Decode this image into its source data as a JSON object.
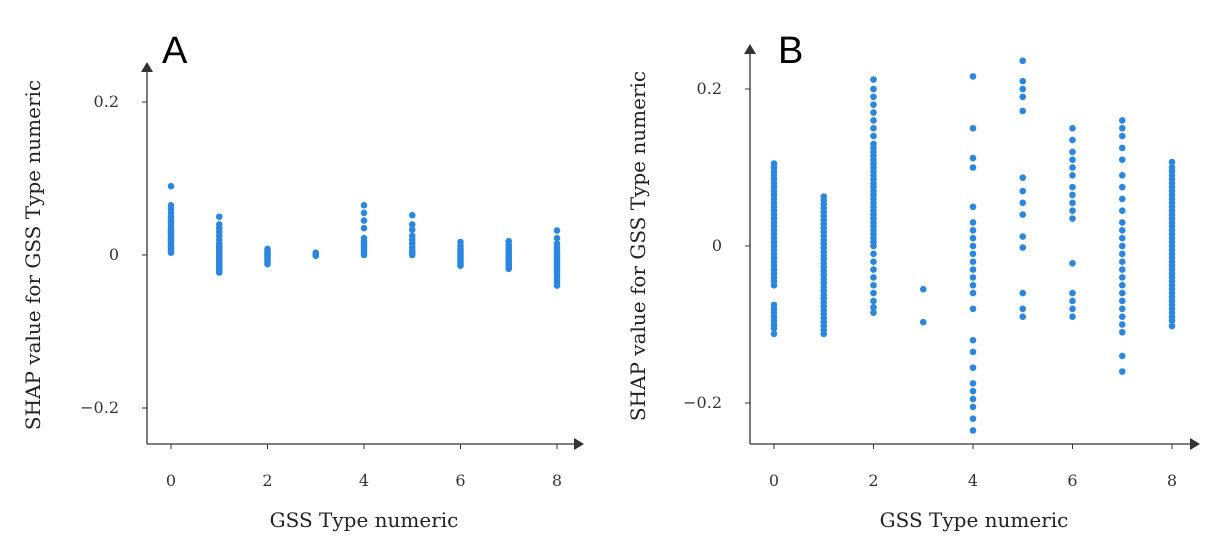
{
  "chart_data": [
    {
      "type": "scatter",
      "panel_label": "A",
      "xlabel": "GSS Type numeric",
      "ylabel": "SHAP value for GSS Type numeric",
      "xlim": [
        -0.5,
        8.4
      ],
      "ylim": [
        -0.25,
        0.23
      ],
      "xticks": [
        0,
        2,
        4,
        6,
        8
      ],
      "xtick_labels": [
        "0",
        "2",
        "4",
        "6",
        "8"
      ],
      "yticks": [
        -0.2,
        0,
        0.2
      ],
      "ytick_labels": [
        "−0.2",
        "0",
        "0.2"
      ],
      "point_color": "#2b86e0",
      "points": [
        {
          "x": 0,
          "y": [
            0.09,
            0.065,
            0.06,
            0.055,
            0.05,
            0.045,
            0.042,
            0.038,
            0.035,
            0.032,
            0.03,
            0.028,
            0.025,
            0.022,
            0.02,
            0.018,
            0.015,
            0.012,
            0.01,
            0.008,
            0.005,
            0.003
          ]
        },
        {
          "x": 1,
          "y": [
            0.05,
            0.04,
            0.035,
            0.03,
            0.025,
            0.02,
            0.015,
            0.012,
            0.01,
            0.008,
            0.005,
            0.002,
            0.0,
            -0.003,
            -0.005,
            -0.008,
            -0.01,
            -0.012,
            -0.015,
            -0.018,
            -0.02,
            -0.023
          ]
        },
        {
          "x": 2,
          "y": [
            0.008,
            0.005,
            0.003,
            0.001,
            -0.001,
            -0.003,
            -0.005,
            -0.007,
            -0.009,
            -0.012
          ]
        },
        {
          "x": 3,
          "y": [
            0.003,
            0.001,
            -0.001
          ]
        },
        {
          "x": 4,
          "y": [
            0.065,
            0.055,
            0.045,
            0.035,
            0.022,
            0.018,
            0.015,
            0.012,
            0.009,
            0.006,
            0.003,
            0.0
          ]
        },
        {
          "x": 5,
          "y": [
            0.052,
            0.04,
            0.033,
            0.025,
            0.02,
            0.015,
            0.01,
            0.006,
            0.003,
            0.0
          ]
        },
        {
          "x": 6,
          "y": [
            0.017,
            0.012,
            0.008,
            0.005,
            0.002,
            0.0,
            -0.002,
            -0.005,
            -0.008,
            -0.011,
            -0.014
          ]
        },
        {
          "x": 7,
          "y": [
            0.018,
            0.013,
            0.009,
            0.005,
            0.002,
            -0.001,
            -0.004,
            -0.007,
            -0.01,
            -0.013,
            -0.016,
            -0.018
          ]
        },
        {
          "x": 8,
          "y": [
            0.032,
            0.022,
            0.015,
            0.01,
            0.006,
            0.003,
            0.0,
            -0.003,
            -0.006,
            -0.009,
            -0.012,
            -0.015,
            -0.018,
            -0.021,
            -0.024,
            -0.028,
            -0.032,
            -0.036,
            -0.04
          ]
        }
      ]
    },
    {
      "type": "scatter",
      "panel_label": "B",
      "xlabel": "GSS Type numeric",
      "ylabel": "SHAP value for GSS Type numeric",
      "xlim": [
        -0.5,
        8.4
      ],
      "ylim": [
        -0.25,
        0.23
      ],
      "xticks": [
        0,
        2,
        4,
        6,
        8
      ],
      "xtick_labels": [
        "0",
        "2",
        "4",
        "6",
        "8"
      ],
      "yticks": [
        -0.2,
        0,
        0.2
      ],
      "ytick_labels": [
        "−0.2",
        "0",
        "0.2"
      ],
      "point_color": "#2b86e0",
      "points": [
        {
          "x": 0,
          "y": [
            0.105,
            0.1,
            0.095,
            0.09,
            0.085,
            0.08,
            0.075,
            0.07,
            0.065,
            0.06,
            0.055,
            0.05,
            0.045,
            0.04,
            0.035,
            0.03,
            0.025,
            0.02,
            0.015,
            0.01,
            0.005,
            0.0,
            -0.005,
            -0.01,
            -0.015,
            -0.02,
            -0.025,
            -0.03,
            -0.035,
            -0.04,
            -0.045,
            -0.05,
            -0.075,
            -0.08,
            -0.085,
            -0.09,
            -0.095,
            -0.1,
            -0.105,
            -0.112
          ]
        },
        {
          "x": 1,
          "y": [
            0.063,
            0.058,
            0.053,
            0.048,
            0.043,
            0.038,
            0.033,
            0.028,
            0.023,
            0.018,
            0.013,
            0.008,
            0.003,
            -0.002,
            -0.007,
            -0.012,
            -0.017,
            -0.022,
            -0.027,
            -0.032,
            -0.037,
            -0.042,
            -0.047,
            -0.052,
            -0.057,
            -0.062,
            -0.067,
            -0.072,
            -0.077,
            -0.082,
            -0.087,
            -0.092,
            -0.097,
            -0.102,
            -0.107,
            -0.112
          ]
        },
        {
          "x": 2,
          "y": [
            0.212,
            0.2,
            0.19,
            0.18,
            0.17,
            0.16,
            0.15,
            0.14,
            0.13,
            0.125,
            0.12,
            0.115,
            0.11,
            0.105,
            0.1,
            0.095,
            0.09,
            0.085,
            0.08,
            0.075,
            0.07,
            0.065,
            0.06,
            0.055,
            0.05,
            0.045,
            0.04,
            0.035,
            0.03,
            0.025,
            0.02,
            0.015,
            0.01,
            0.005,
            0.0,
            -0.01,
            -0.02,
            -0.03,
            -0.04,
            -0.05,
            -0.06,
            -0.07,
            -0.078,
            -0.085
          ]
        },
        {
          "x": 3,
          "y": [
            -0.055,
            -0.097
          ]
        },
        {
          "x": 4,
          "y": [
            0.216,
            0.15,
            0.112,
            0.1,
            0.05,
            0.03,
            0.02,
            0.01,
            0.0,
            -0.01,
            -0.02,
            -0.03,
            -0.04,
            -0.05,
            -0.06,
            -0.08,
            -0.12,
            -0.135,
            -0.155,
            -0.175,
            -0.185,
            -0.195,
            -0.205,
            -0.22,
            -0.235
          ]
        },
        {
          "x": 5,
          "y": [
            0.236,
            0.21,
            0.2,
            0.19,
            0.172,
            0.087,
            0.07,
            0.055,
            0.04,
            0.012,
            -0.002,
            -0.06,
            -0.08,
            -0.09
          ]
        },
        {
          "x": 6,
          "y": [
            0.15,
            0.135,
            0.12,
            0.11,
            0.1,
            0.09,
            0.075,
            0.065,
            0.055,
            0.045,
            0.035,
            -0.022,
            -0.06,
            -0.07,
            -0.08,
            -0.09
          ]
        },
        {
          "x": 7,
          "y": [
            0.16,
            0.15,
            0.14,
            0.125,
            0.11,
            0.09,
            0.075,
            0.06,
            0.045,
            0.03,
            0.02,
            0.01,
            0.0,
            -0.01,
            -0.02,
            -0.03,
            -0.04,
            -0.05,
            -0.06,
            -0.07,
            -0.08,
            -0.09,
            -0.1,
            -0.11,
            -0.14,
            -0.16
          ]
        },
        {
          "x": 8,
          "y": [
            0.107,
            0.1,
            0.095,
            0.09,
            0.085,
            0.08,
            0.075,
            0.07,
            0.065,
            0.06,
            0.055,
            0.05,
            0.045,
            0.04,
            0.035,
            0.03,
            0.025,
            0.02,
            0.015,
            0.01,
            0.005,
            0.0,
            -0.005,
            -0.01,
            -0.015,
            -0.02,
            -0.025,
            -0.03,
            -0.035,
            -0.04,
            -0.045,
            -0.05,
            -0.055,
            -0.06,
            -0.065,
            -0.07,
            -0.075,
            -0.08,
            -0.085,
            -0.09,
            -0.095,
            -0.102
          ]
        }
      ]
    }
  ]
}
